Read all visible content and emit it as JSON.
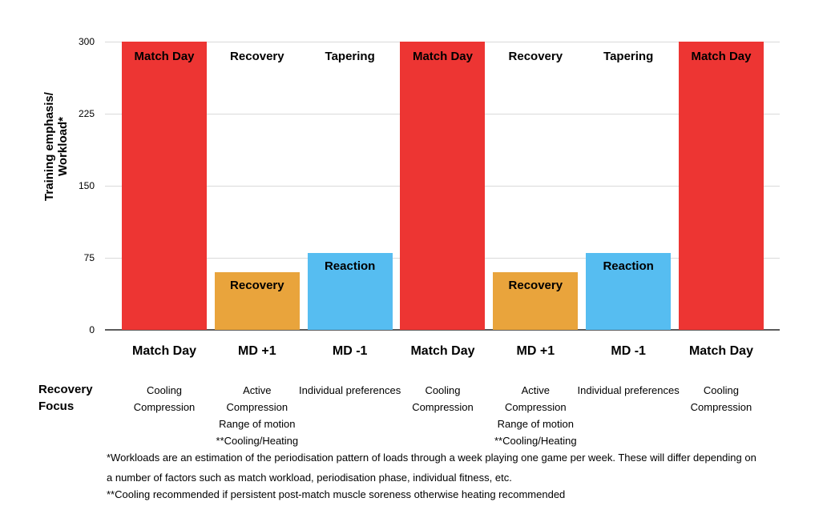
{
  "colors": {
    "red": "#ED3533",
    "orange": "#E9A43C",
    "blue": "#56BDF1",
    "gridline": "#D9D9D9",
    "axis_line": "#5B5B5B",
    "text": "#000000"
  },
  "chart_data": {
    "type": "bar",
    "ylabel": "Training emphasis/Workload*",
    "ylabel_lines": [
      "Training emphasis/",
      "Workload*"
    ],
    "ylim": [
      0,
      300
    ],
    "yticks": [
      0,
      75,
      150,
      225,
      300
    ],
    "grid": "horizontal gridlines on",
    "legend_position": "none",
    "categories": [
      "Match Day",
      "MD +1",
      "MD -1",
      "Match Day",
      "MD +1",
      "MD -1",
      "Match Day"
    ],
    "values": [
      300,
      60,
      80,
      300,
      60,
      80,
      300
    ],
    "bar_colors": [
      "red",
      "orange",
      "blue",
      "red",
      "orange",
      "blue",
      "red"
    ],
    "phase_labels": [
      "Match Day",
      "Recovery",
      "Tapering",
      "Match Day",
      "Recovery",
      "Tapering",
      "Match Day"
    ],
    "in_bar_labels": [
      "",
      "Recovery",
      "Reaction",
      "",
      "Recovery",
      "Reaction",
      ""
    ]
  },
  "recovery_focus": {
    "label_lines": [
      "Recovery",
      "Focus"
    ],
    "columns": [
      [
        "Cooling",
        "Compression"
      ],
      [
        "Active",
        "Compression",
        "Range of motion",
        "**Cooling/Heating"
      ],
      [
        "Individual preferences"
      ],
      [
        "Cooling",
        "Compression"
      ],
      [
        "Active",
        "Compression",
        "Range of motion",
        "**Cooling/Heating"
      ],
      [
        "Individual preferences"
      ],
      [
        "Cooling",
        "Compression"
      ]
    ]
  },
  "footnotes": [
    "*Workloads are an estimation of the periodisation pattern of loads through a week playing one game per week. These will differ depending on",
    "a number of factors such as match workload, periodisation phase, individual fitness, etc.",
    "**Cooling recommended if persistent post-match muscle soreness otherwise heating recommended"
  ]
}
